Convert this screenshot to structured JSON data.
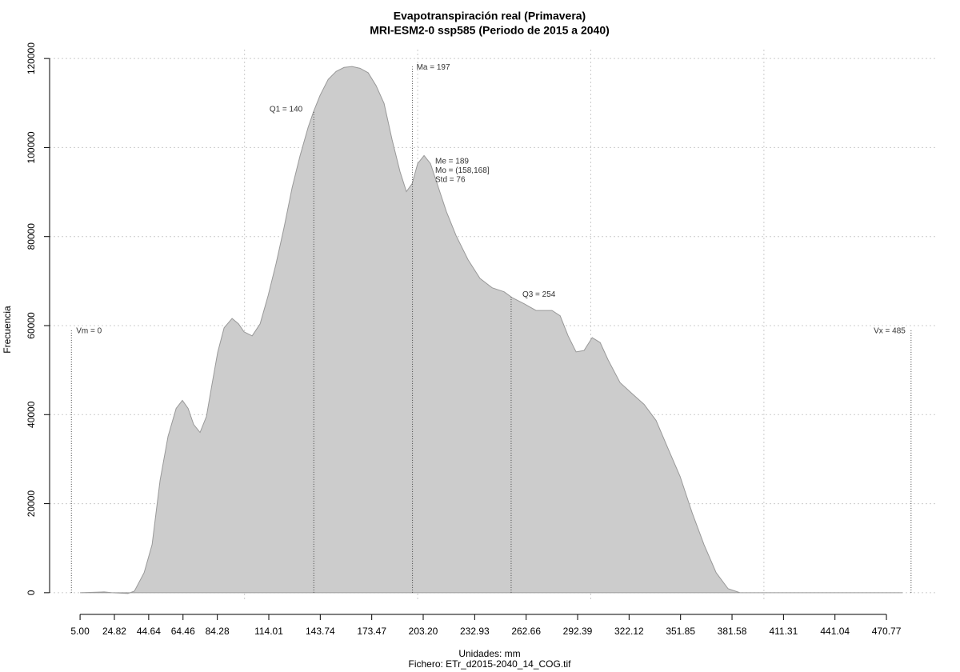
{
  "chart_data": {
    "type": "area",
    "title": "Evapotranspiración real (Primavera)",
    "subtitle": "MRI-ESM2-0 ssp585 (Periodo de 2015 a 2040)",
    "x_label": "Unidades: mm",
    "caption": "Fichero: ETr_d2015-2040_14_COG.tif",
    "y_label": "Frecuencia",
    "color": "#cccccc",
    "line_color": "#999999",
    "grid": true,
    "xlim": [
      -12.6,
      499.4
    ],
    "ylim": [
      -2000,
      122000
    ],
    "xticks": [
      {
        "value": 5,
        "label": "5.00"
      },
      24.82,
      44.64,
      64.46,
      84.28,
      114.01,
      143.74,
      173.47,
      {
        "value": 203.2,
        "label": "203.20"
      },
      232.93,
      262.66,
      292.39,
      322.12,
      351.85,
      381.58,
      411.31,
      441.04,
      470.77
    ],
    "xgrid": [
      100,
      200,
      300,
      400
    ],
    "yticks": [
      0,
      20000,
      40000,
      60000,
      80000,
      100000,
      120000
    ],
    "series": [
      {
        "x": [
          5,
          18.9,
          23.5,
          32.7,
          36.4,
          42,
          46.6,
          51.2,
          55.8,
          60.5,
          64.1,
          67.4,
          70.6,
          74.3,
          78,
          81.2,
          84.5,
          88.2,
          92.8,
          96.5,
          99.7,
          104.4,
          109,
          113.6,
          118.2,
          122.8,
          127.5,
          132.1,
          136.7,
          139.9,
          143.6,
          148.3,
          152.9,
          157.5,
          162.1,
          166.7,
          171.4,
          176,
          180.6,
          185.2,
          189.8,
          193.5,
          196.8,
          200,
          203.7,
          207.4,
          212,
          216.6,
          222.2,
          229.1,
          236,
          243,
          249.9,
          254.5,
          261.5,
          268.4,
          277.6,
          282.3,
          286.9,
          291.5,
          296.1,
          300.8,
          305.4,
          310,
          316.9,
          323.9,
          330.8,
          337.7,
          344.6,
          351.6,
          358.5,
          365.4,
          372.4,
          379.3,
          386.2,
          420.9,
          480
        ],
        "values": [
          0,
          180,
          0,
          -180,
          360,
          4500,
          10800,
          25200,
          35100,
          41400,
          43200,
          41400,
          37800,
          36000,
          39600,
          46800,
          54000,
          59500,
          61600,
          60400,
          58600,
          57700,
          60400,
          66700,
          73900,
          82000,
          91000,
          98200,
          104500,
          108100,
          111700,
          115300,
          117100,
          118000,
          118200,
          117800,
          116800,
          113900,
          109900,
          101800,
          94600,
          90100,
          91900,
          96400,
          98200,
          96400,
          91000,
          85600,
          80200,
          74800,
          70600,
          68500,
          67600,
          66300,
          64900,
          63400,
          63400,
          62200,
          57700,
          54100,
          54400,
          57300,
          56200,
          52300,
          47200,
          44700,
          42300,
          38700,
          32400,
          26100,
          18000,
          10800,
          4500,
          900,
          0,
          0,
          0
        ]
      }
    ],
    "markers": [
      {
        "label": "Vm = 0",
        "x": 0
      },
      {
        "label": "Q1 = 140",
        "x": 140
      },
      {
        "label": "Ma = 197",
        "x": 197
      },
      {
        "label": "Q3 = 254",
        "x": 254
      },
      {
        "label": "Vx = 485",
        "x": 485
      }
    ],
    "stats_text": [
      "Me = 189",
      "Mo = (158,168]",
      "Std = 76"
    ]
  }
}
